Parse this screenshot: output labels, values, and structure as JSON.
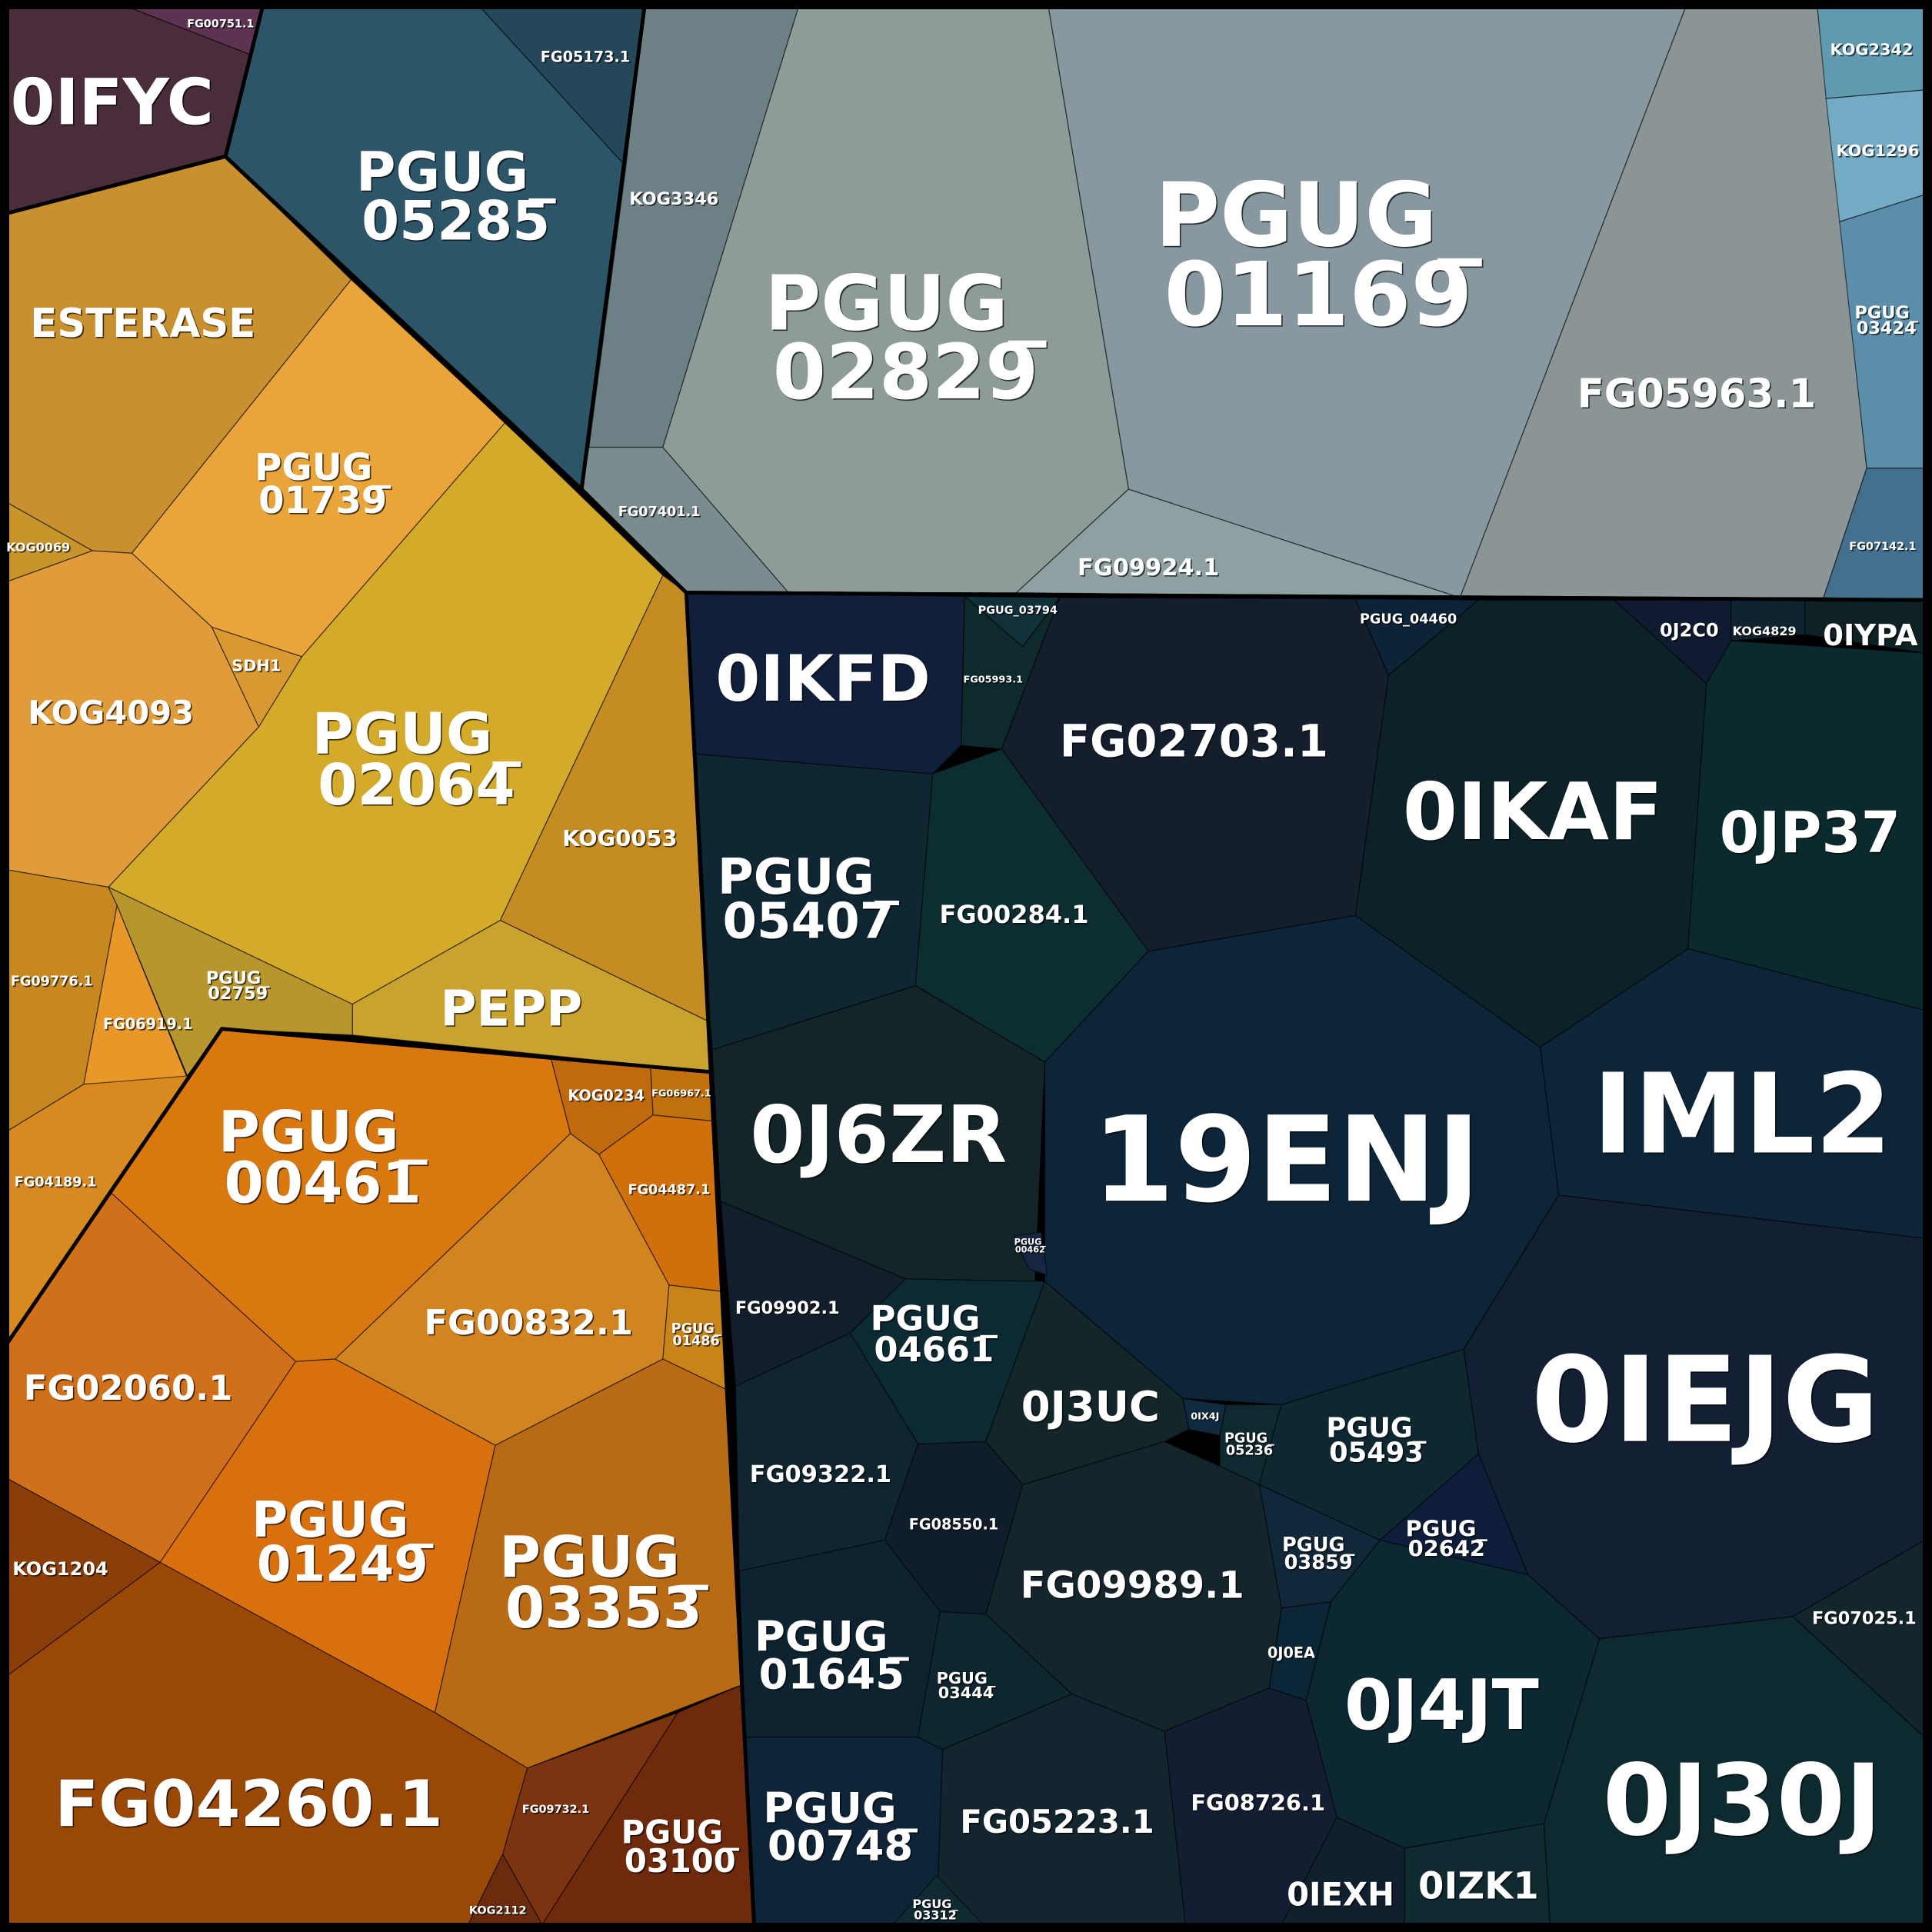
{
  "chart_data": {
    "type": "treemap",
    "layout": "voronoi",
    "groups": [
      {
        "color": "#4a2d3a",
        "cells": [
          {
            "name": "0IFYC",
            "color": "#4a2d3a"
          },
          {
            "name": "FG00751.1",
            "color": "#5e3352"
          }
        ]
      },
      {
        "color": "#2c5568",
        "cells": [
          {
            "name": "PGUG_05285",
            "color": "#2c5568"
          },
          {
            "name": "FG05173.1",
            "color": "#25475a"
          }
        ]
      },
      {
        "color": "#8a9a9c",
        "cells": [
          {
            "name": "KOG3346",
            "color": "#6d8085"
          },
          {
            "name": "FG07401.1",
            "color": "#7a8c90"
          },
          {
            "name": "PGUG_02829",
            "color": "#8e9c98"
          },
          {
            "name": "FG09924.1",
            "color": "#8fa0a2"
          },
          {
            "name": "PGUG_01169",
            "color": "#8898a0"
          },
          {
            "name": "FG05963.1",
            "color": "#8c9596"
          },
          {
            "name": "KOG2342",
            "color": "#5f9ab0"
          },
          {
            "name": "KOG1296",
            "color": "#74abc4"
          },
          {
            "name": "PGUG_03424",
            "color": "#5a8eaa"
          },
          {
            "name": "FG07142.1",
            "color": "#43708e"
          }
        ]
      },
      {
        "color": "#d4a030",
        "cells": [
          {
            "name": "ESTERASE",
            "color": "#c8902e"
          },
          {
            "name": "PGUG_01739",
            "color": "#e9a53a"
          },
          {
            "name": "KOG0069",
            "color": "#c8952a"
          },
          {
            "name": "KOG4093",
            "color": "#e09c3a"
          },
          {
            "name": "SDH1",
            "color": "#d89a30"
          },
          {
            "name": "PGUG_02064",
            "color": "#d4aa2a"
          },
          {
            "name": "KOG0053",
            "color": "#c48c22"
          },
          {
            "name": "PEPP",
            "color": "#c9a230"
          },
          {
            "name": "PGUG_02759",
            "color": "#b8962e"
          },
          {
            "name": "FG09776.1",
            "color": "#c88820"
          },
          {
            "name": "FG06919.1",
            "color": "#e89828"
          },
          {
            "name": "FG04189.1",
            "color": "#d88a20"
          }
        ]
      },
      {
        "color": "#c8700e",
        "cells": [
          {
            "name": "PGUG_00461",
            "color": "#d8780e"
          },
          {
            "name": "KOG0234",
            "color": "#c06a10"
          },
          {
            "name": "FG06967.1",
            "color": "#c0700c"
          },
          {
            "name": "FG04487.1",
            "color": "#d0700a"
          },
          {
            "name": "FG00832.1",
            "color": "#d28420"
          },
          {
            "name": "PGUG_01486",
            "color": "#c88418"
          },
          {
            "name": "FG02060.1",
            "color": "#d0701a"
          },
          {
            "name": "PGUG_01249",
            "color": "#d8700e"
          },
          {
            "name": "PGUG_03353",
            "color": "#b86a14"
          },
          {
            "name": "KOG1204",
            "color": "#8a3e08"
          },
          {
            "name": "FG04260.1",
            "color": "#9a4806"
          },
          {
            "name": "FG09732.1",
            "color": "#7a3410"
          },
          {
            "name": "PGUG_03100",
            "color": "#6e2a0a"
          },
          {
            "name": "KOG2112",
            "color": "#6a2c0c"
          }
        ]
      },
      {
        "color": "#0d2434",
        "cells": [
          {
            "name": "0IKFD",
            "color": "#11203a"
          },
          {
            "name": "PGUG_03794",
            "color": "#12303a"
          },
          {
            "name": "FG05993.1",
            "color": "#0e2a2c"
          },
          {
            "name": "FG02703.1",
            "color": "#141e2c"
          },
          {
            "name": "PGUG_04460",
            "color": "#0d2438"
          },
          {
            "name": "0J2C0",
            "color": "#101a30"
          },
          {
            "name": "KOG4829",
            "color": "#0f2430"
          },
          {
            "name": "0IYPA",
            "color": "#0e2226"
          },
          {
            "name": "0IKAF",
            "color": "#0c2228"
          },
          {
            "name": "0JP37",
            "color": "#0b2a2e"
          },
          {
            "name": "IML2",
            "color": "#0d2538"
          },
          {
            "name": "PGUG_05407",
            "color": "#0f2633"
          },
          {
            "name": "FG00284.1",
            "color": "#0c2e30"
          },
          {
            "name": "0J6ZR",
            "color": "#132528"
          },
          {
            "name": "19ENJ",
            "color": "#0c2538"
          },
          {
            "name": "PGUG_00462",
            "color": "#162640"
          },
          {
            "name": "FG09902.1",
            "color": "#131e2c"
          },
          {
            "name": "PGUG_04661",
            "color": "#0c2a34"
          },
          {
            "name": "0J3UC",
            "color": "#13262a"
          },
          {
            "name": "0IX4J",
            "color": "#102a40"
          },
          {
            "name": "PGUG_05236",
            "color": "#0e2a30"
          },
          {
            "name": "PGUG_05493",
            "color": "#0d2830"
          },
          {
            "name": "0IEJG",
            "color": "#131f32"
          },
          {
            "name": "PGUG_02642",
            "color": "#0e1e3a"
          },
          {
            "name": "FG07025.1",
            "color": "#12262c"
          },
          {
            "name": "0J30J",
            "color": "#0c2a30"
          },
          {
            "name": "0J4JT",
            "color": "#0c2832"
          },
          {
            "name": "0IZK1",
            "color": "#0f2a30"
          },
          {
            "name": "0IEXH",
            "color": "#10202e"
          },
          {
            "name": "FG08726.1",
            "color": "#141e32"
          },
          {
            "name": "0J0EA",
            "color": "#0b2636"
          },
          {
            "name": "PGUG_03859",
            "color": "#10283a"
          },
          {
            "name": "FG09989.1",
            "color": "#14262c"
          },
          {
            "name": "FG09322.1",
            "color": "#0f2630"
          },
          {
            "name": "FG08550.1",
            "color": "#101e2c"
          },
          {
            "name": "PGUG_01645",
            "color": "#0d2430"
          },
          {
            "name": "PGUG_03444",
            "color": "#0e262e"
          },
          {
            "name": "FG05223.1",
            "color": "#132630"
          },
          {
            "name": "PGUG_00748",
            "color": "#0e2438"
          },
          {
            "name": "PGUG_03312",
            "color": "#0f2a30"
          }
        ]
      }
    ]
  }
}
